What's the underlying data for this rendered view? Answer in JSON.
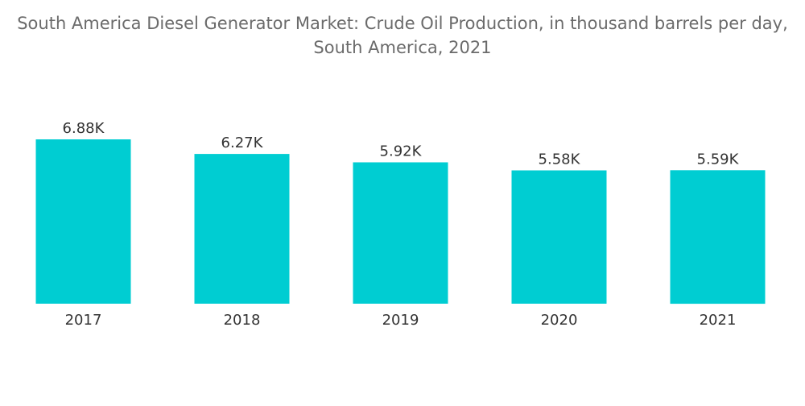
{
  "chart_data": {
    "type": "bar",
    "title_line1": "South America Diesel Generator Market: Crude Oil Production, in thousand barrels per day,",
    "title_line2": "South America, 2021",
    "categories": [
      "2017",
      "2018",
      "2019",
      "2020",
      "2021"
    ],
    "values": [
      6.88,
      6.27,
      5.92,
      5.58,
      5.59
    ],
    "value_labels": [
      "6.88K",
      "6.27K",
      "5.92K",
      "5.58K",
      "5.59K"
    ],
    "xlabel": "",
    "ylabel": "",
    "ylim": [
      0,
      6.88
    ],
    "grid": false,
    "legend": "none",
    "bar_color": "#00cdd2"
  }
}
